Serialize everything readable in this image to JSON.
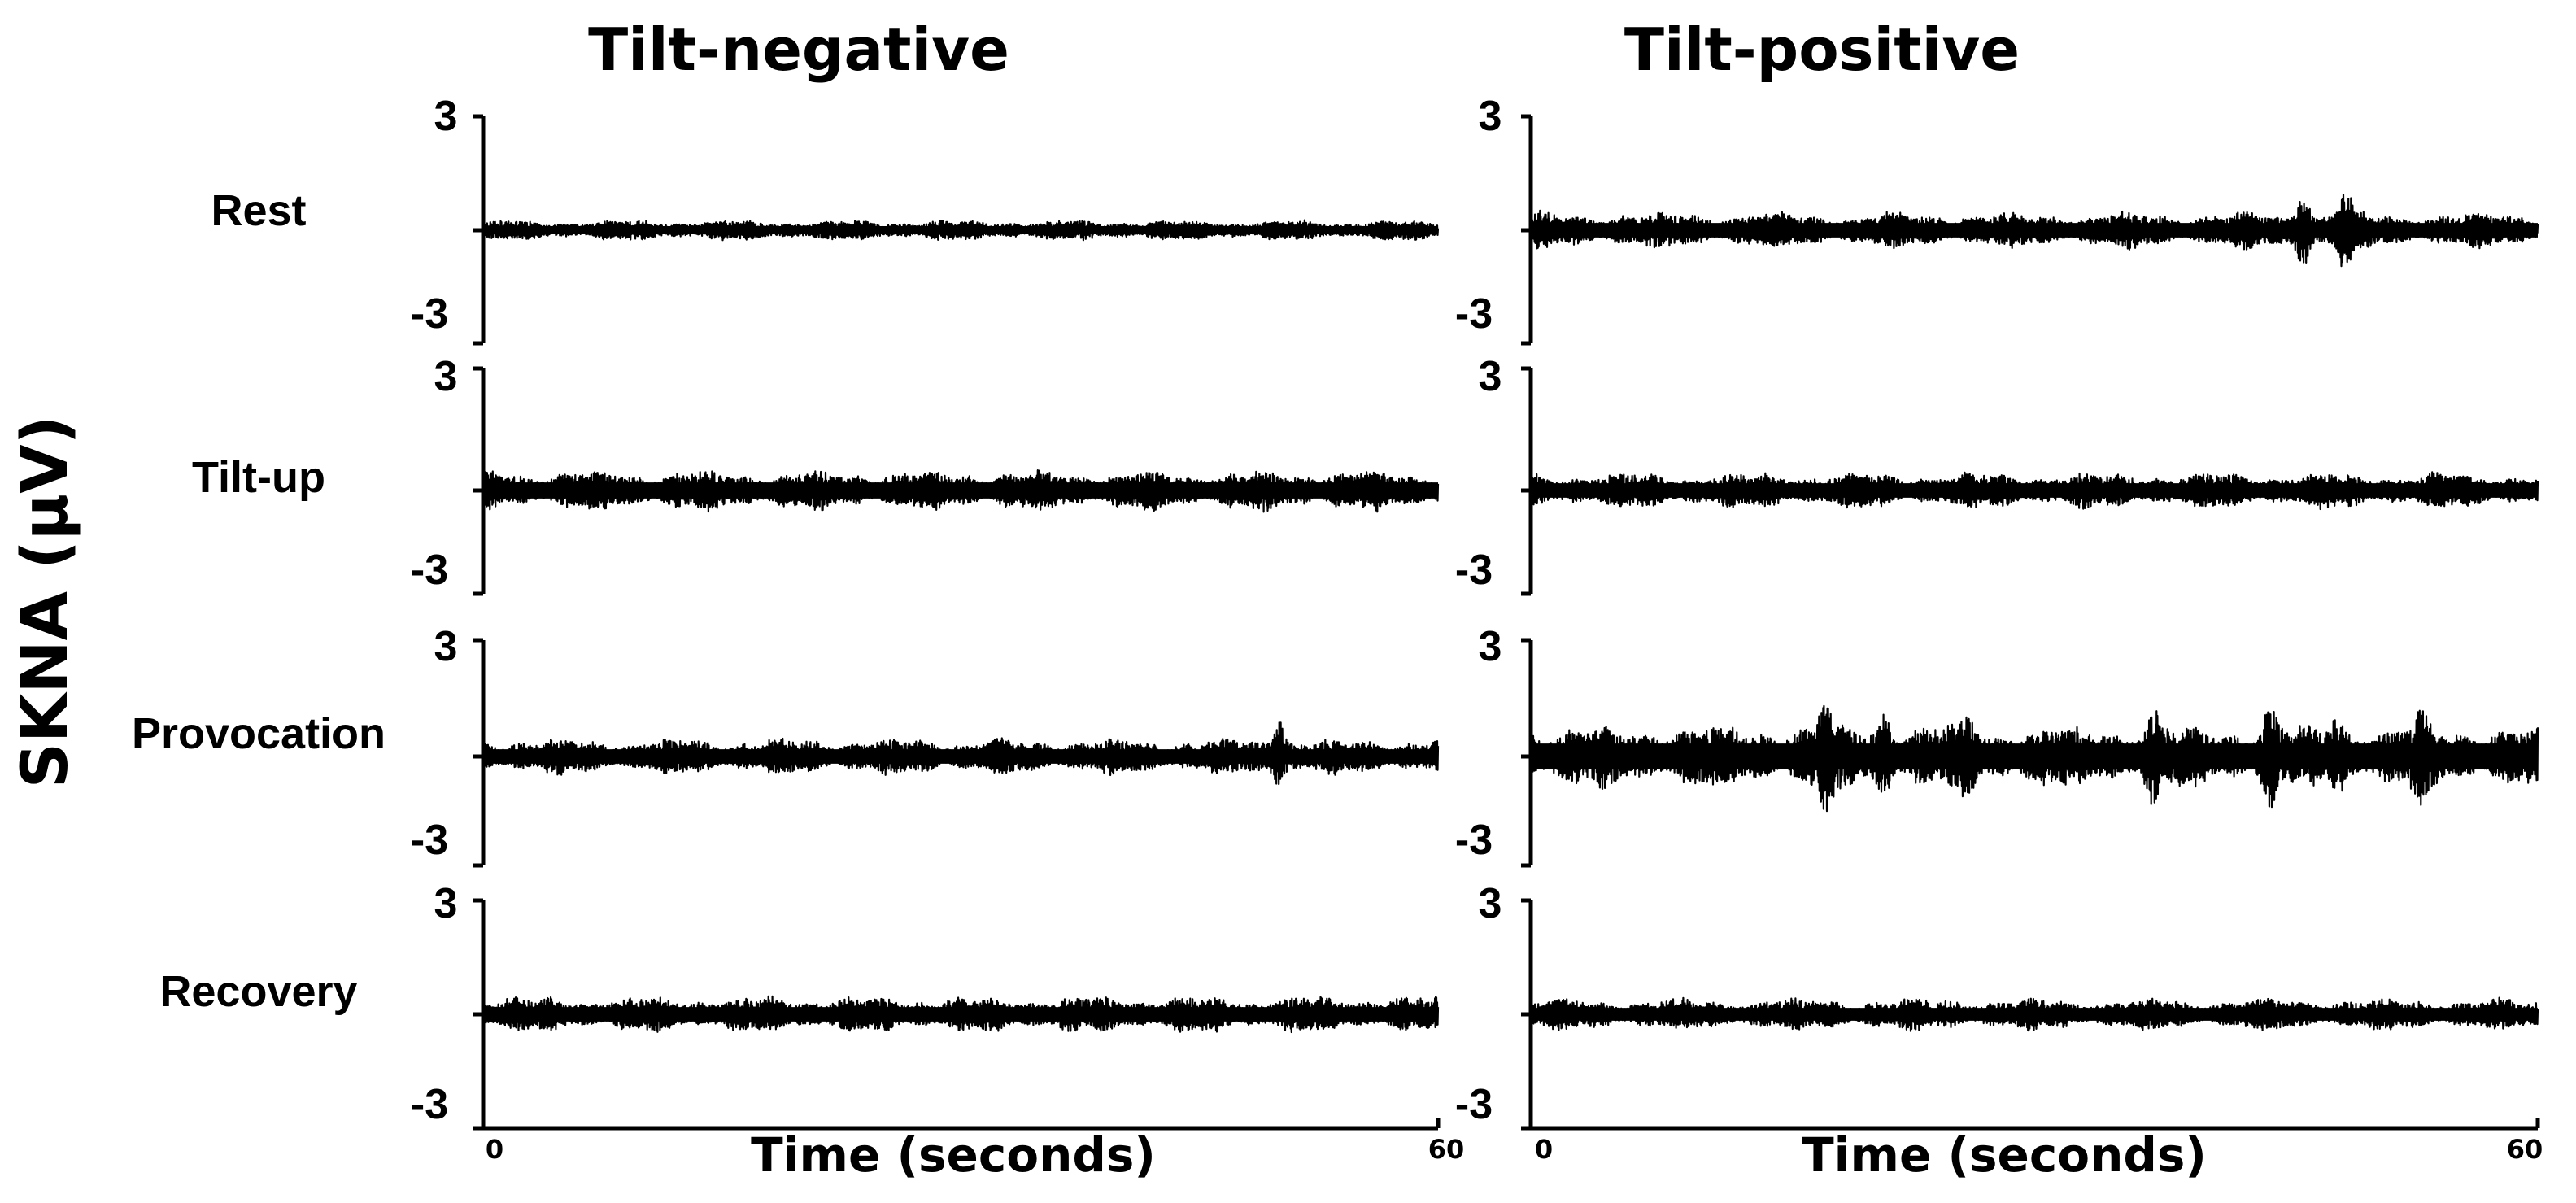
{
  "ylabel": "SKNA (μV)",
  "chart_data": [
    {
      "type": "line",
      "title": "Tilt-negative",
      "xlabel": "Time (seconds)",
      "ylabel": "SKNA (μV)",
      "x_ticks": [
        "0",
        "60"
      ],
      "xlim": [
        0,
        60
      ],
      "ylim": [
        -3,
        3
      ],
      "panels": [
        {
          "name": "Rest",
          "y_ticks": [
            "3",
            "-3"
          ],
          "baseline": 0,
          "typical_amplitude": 0.25,
          "bursts": []
        },
        {
          "name": "Tilt-up",
          "y_ticks": [
            "3",
            "-3"
          ],
          "baseline": 0,
          "typical_amplitude": 0.5,
          "bursts": []
        },
        {
          "name": "Provocation",
          "y_ticks": [
            "3",
            "-3"
          ],
          "baseline": 0,
          "typical_amplitude": 0.45,
          "bursts": [
            {
              "time": 50,
              "peak": 1.2
            }
          ]
        },
        {
          "name": "Recovery",
          "y_ticks": [
            "3",
            "-3"
          ],
          "baseline": 0,
          "typical_amplitude": 0.45,
          "bursts": []
        }
      ]
    },
    {
      "type": "line",
      "title": "Tilt-positive",
      "xlabel": "Time (seconds)",
      "ylabel": "SKNA (μV)",
      "x_ticks": [
        "0",
        "60"
      ],
      "xlim": [
        0,
        60
      ],
      "ylim": [
        -3,
        3
      ],
      "panels": [
        {
          "name": "Rest",
          "y_ticks": [
            "3",
            "-3"
          ],
          "baseline": 0,
          "typical_amplitude": 0.45,
          "bursts": [
            {
              "time": 46,
              "peak": 1.3
            },
            {
              "time": 48.5,
              "peak": 1.25
            }
          ]
        },
        {
          "name": "Tilt-up",
          "y_ticks": [
            "3",
            "-3"
          ],
          "baseline": 0,
          "typical_amplitude": 0.45,
          "bursts": []
        },
        {
          "name": "Provocation",
          "y_ticks": [
            "3",
            "-3"
          ],
          "baseline": 0,
          "typical_amplitude": 0.8,
          "bursts": [
            {
              "time": 17.5,
              "peak": 1.7
            },
            {
              "time": 21,
              "peak": 1.4
            },
            {
              "time": 26,
              "peak": 1.3
            },
            {
              "time": 37,
              "peak": 1.4
            },
            {
              "time": 44,
              "peak": 1.5
            },
            {
              "time": 48,
              "peak": 1.4
            },
            {
              "time": 53,
              "peak": 1.3
            }
          ]
        },
        {
          "name": "Recovery",
          "y_ticks": [
            "3",
            "-3"
          ],
          "baseline": 0,
          "typical_amplitude": 0.4,
          "bursts": []
        }
      ]
    }
  ]
}
